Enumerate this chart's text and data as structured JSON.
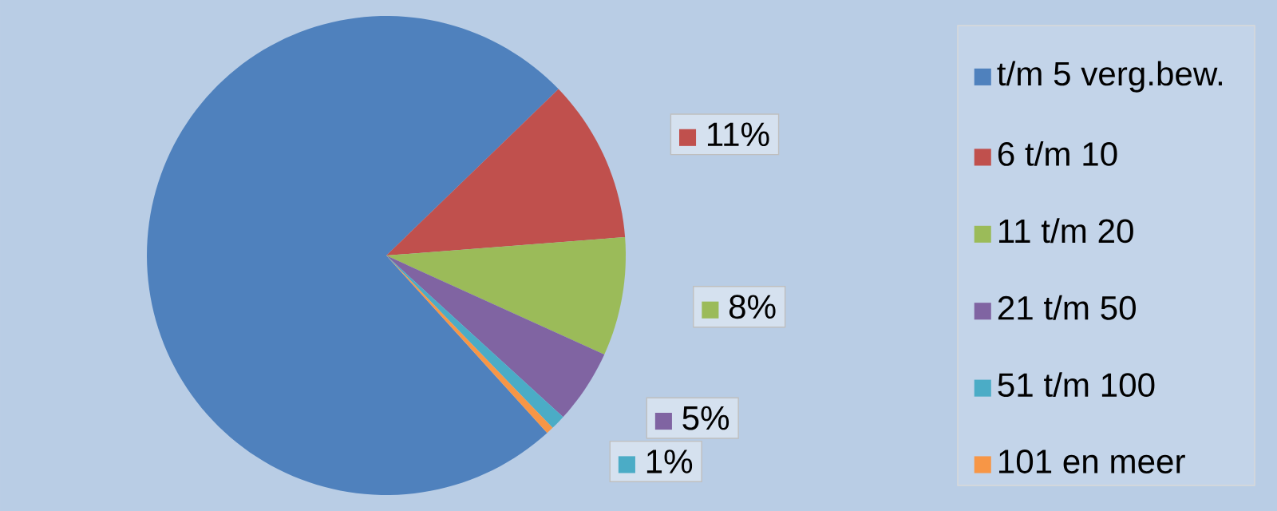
{
  "chart_data": {
    "type": "pie",
    "categories": [
      "t/m 5 verg.bew.",
      "6 t/m 10",
      "11 t/m 20",
      "21 t/m 50",
      "51 t/m 100",
      "101 en meer"
    ],
    "values": [
      74.5,
      11,
      8,
      5,
      1,
      0.5
    ],
    "colors": [
      "#4f81bd",
      "#c0504d",
      "#9bbb59",
      "#8064a2",
      "#4bacc6",
      "#f79646"
    ],
    "value_labels": [
      null,
      "11%",
      "8%",
      "5%",
      "1%",
      null
    ],
    "legend": "right"
  }
}
